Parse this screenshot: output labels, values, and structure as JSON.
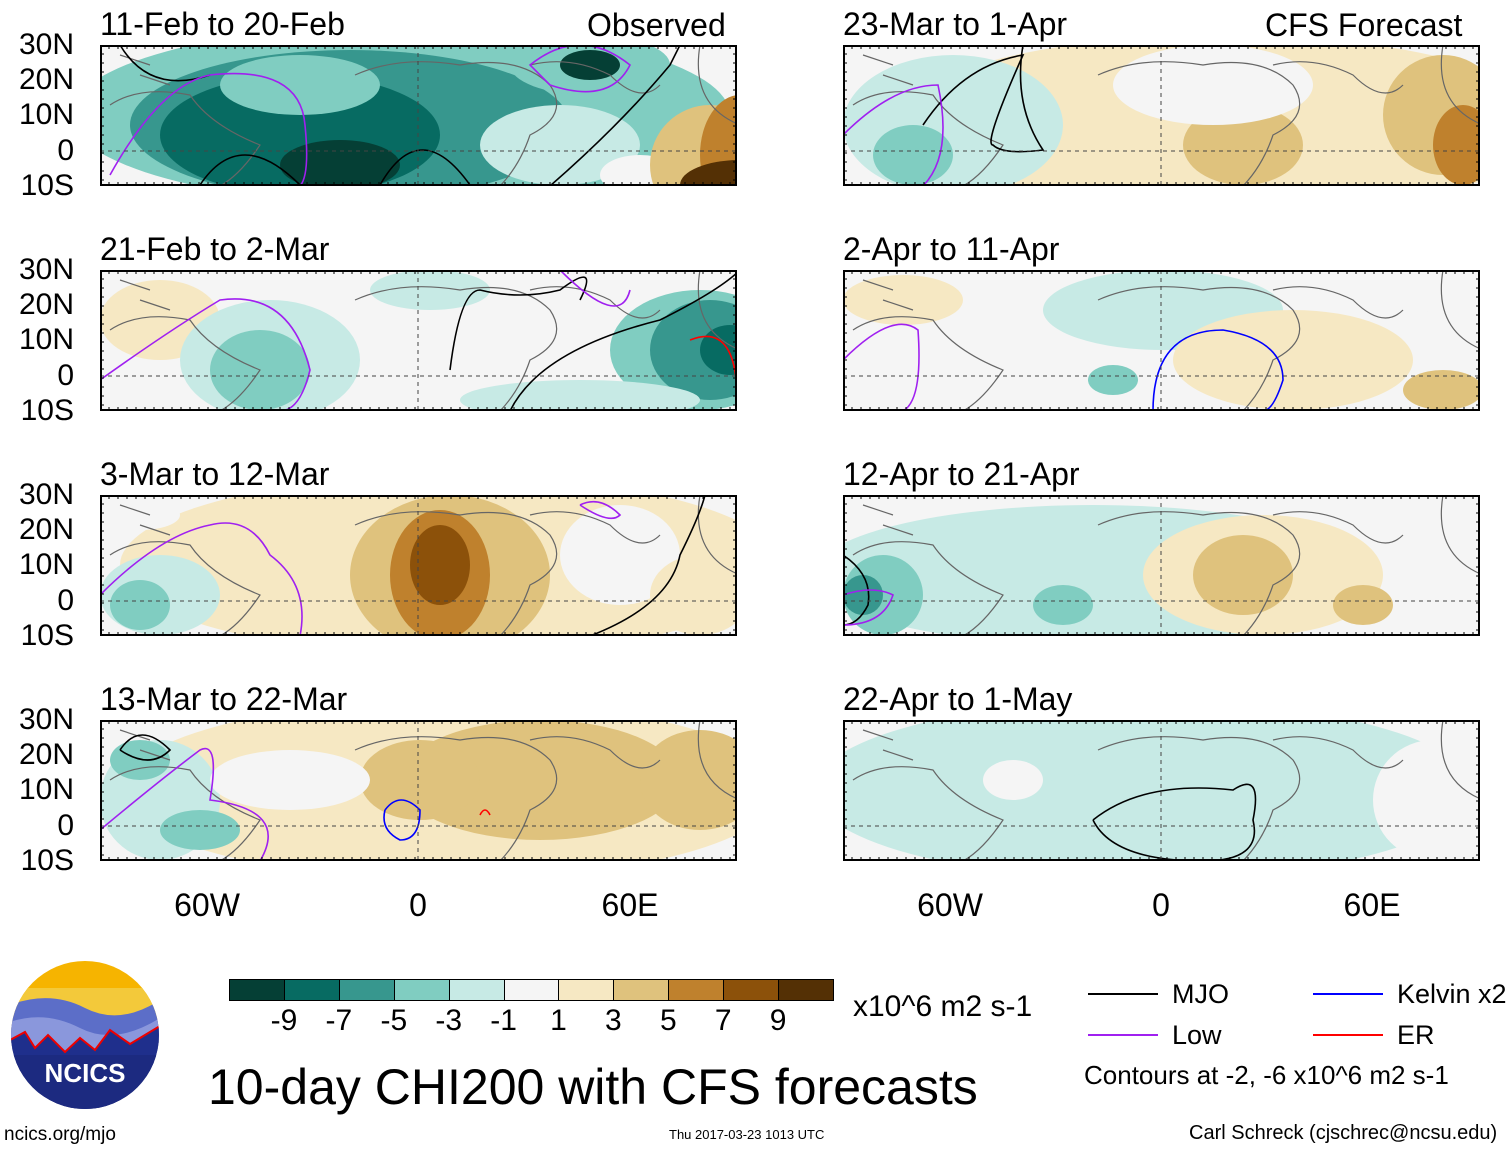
{
  "header": {
    "observed_label": "Observed",
    "forecast_label": "CFS Forecast"
  },
  "panels_left": [
    {
      "title": "11-Feb to 20-Feb"
    },
    {
      "title": "21-Feb to 2-Mar"
    },
    {
      "title": "3-Mar to 12-Mar"
    },
    {
      "title": "13-Mar to 22-Mar"
    }
  ],
  "panels_right": [
    {
      "title": "23-Mar to 1-Apr"
    },
    {
      "title": "2-Apr to 11-Apr"
    },
    {
      "title": "12-Apr to 21-Apr"
    },
    {
      "title": "22-Apr to 1-May"
    }
  ],
  "lat_labels": [
    "30N",
    "20N",
    "10N",
    "0",
    "10S"
  ],
  "lon_labels": [
    "60W",
    "0",
    "60E"
  ],
  "colorbar": {
    "colors": [
      "#053f35",
      "#076b62",
      "#37978e",
      "#80cdc1",
      "#c7eae5",
      "#f5f5f5",
      "#f6e8c3",
      "#dfc27d",
      "#bf812d",
      "#8c510a",
      "#543005"
    ],
    "ticks": [
      "-9",
      "-7",
      "-5",
      "-3",
      "-1",
      "1",
      "3",
      "5",
      "7",
      "9"
    ],
    "units": "x10^6 m2 s-1"
  },
  "legend": {
    "items": [
      {
        "label": "MJO",
        "color": "#000000"
      },
      {
        "label": "Kelvin x2",
        "color": "#0000ff"
      },
      {
        "label": "Low",
        "color": "#a020f0"
      },
      {
        "label": "ER",
        "color": "#ff0000"
      }
    ],
    "contours_note": "Contours at -2, -6 x10^6 m2 s-1"
  },
  "main_title": "10-day CHI200 with CFS forecasts",
  "logo_text": "NCICS",
  "footer": {
    "url": "ncics.org/mjo",
    "timestamp": "Thu 2017-03-23 1013 UTC",
    "author": "Carl Schreck (cjschrec@ncsu.edu)"
  }
}
